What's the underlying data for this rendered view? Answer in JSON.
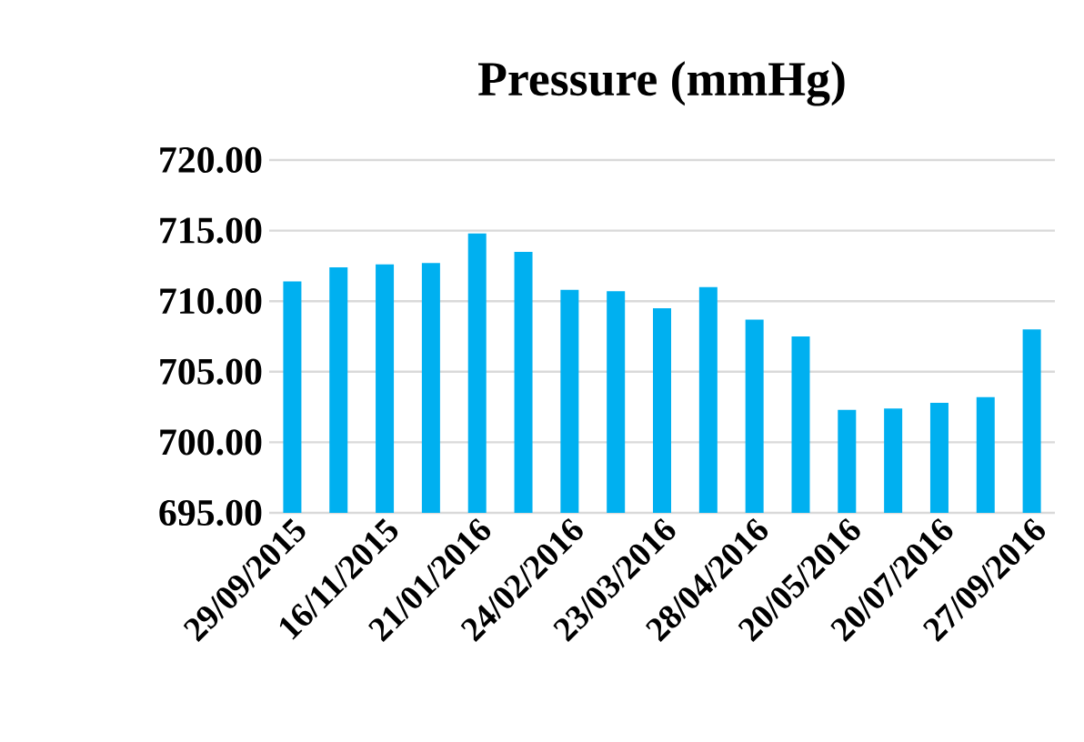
{
  "chart_data": {
    "type": "bar",
    "title": "Pressure (mmHg)",
    "categories": [
      "29/09/2015",
      null,
      "16/11/2015",
      null,
      "21/01/2016",
      null,
      "24/02/2016",
      null,
      "23/03/2016",
      null,
      "28/04/2016",
      null,
      "20/05/2016",
      null,
      "20/07/2016",
      null,
      "27/09/2016"
    ],
    "values": [
      711.4,
      712.4,
      712.6,
      712.7,
      714.8,
      713.5,
      710.8,
      710.7,
      709.5,
      711.0,
      708.7,
      707.5,
      702.3,
      702.4,
      702.8,
      703.2,
      708.0
    ],
    "color": "#00b0f0",
    "ylim": [
      695,
      720
    ],
    "yticks": [
      {
        "value": 695,
        "label": "695.00"
      },
      {
        "value": 700,
        "label": "700.00"
      },
      {
        "value": 705,
        "label": "705.00"
      },
      {
        "value": 710,
        "label": "710.00"
      },
      {
        "value": 715,
        "label": "715.00"
      },
      {
        "value": 720,
        "label": "720.00"
      }
    ],
    "grid": "y"
  }
}
